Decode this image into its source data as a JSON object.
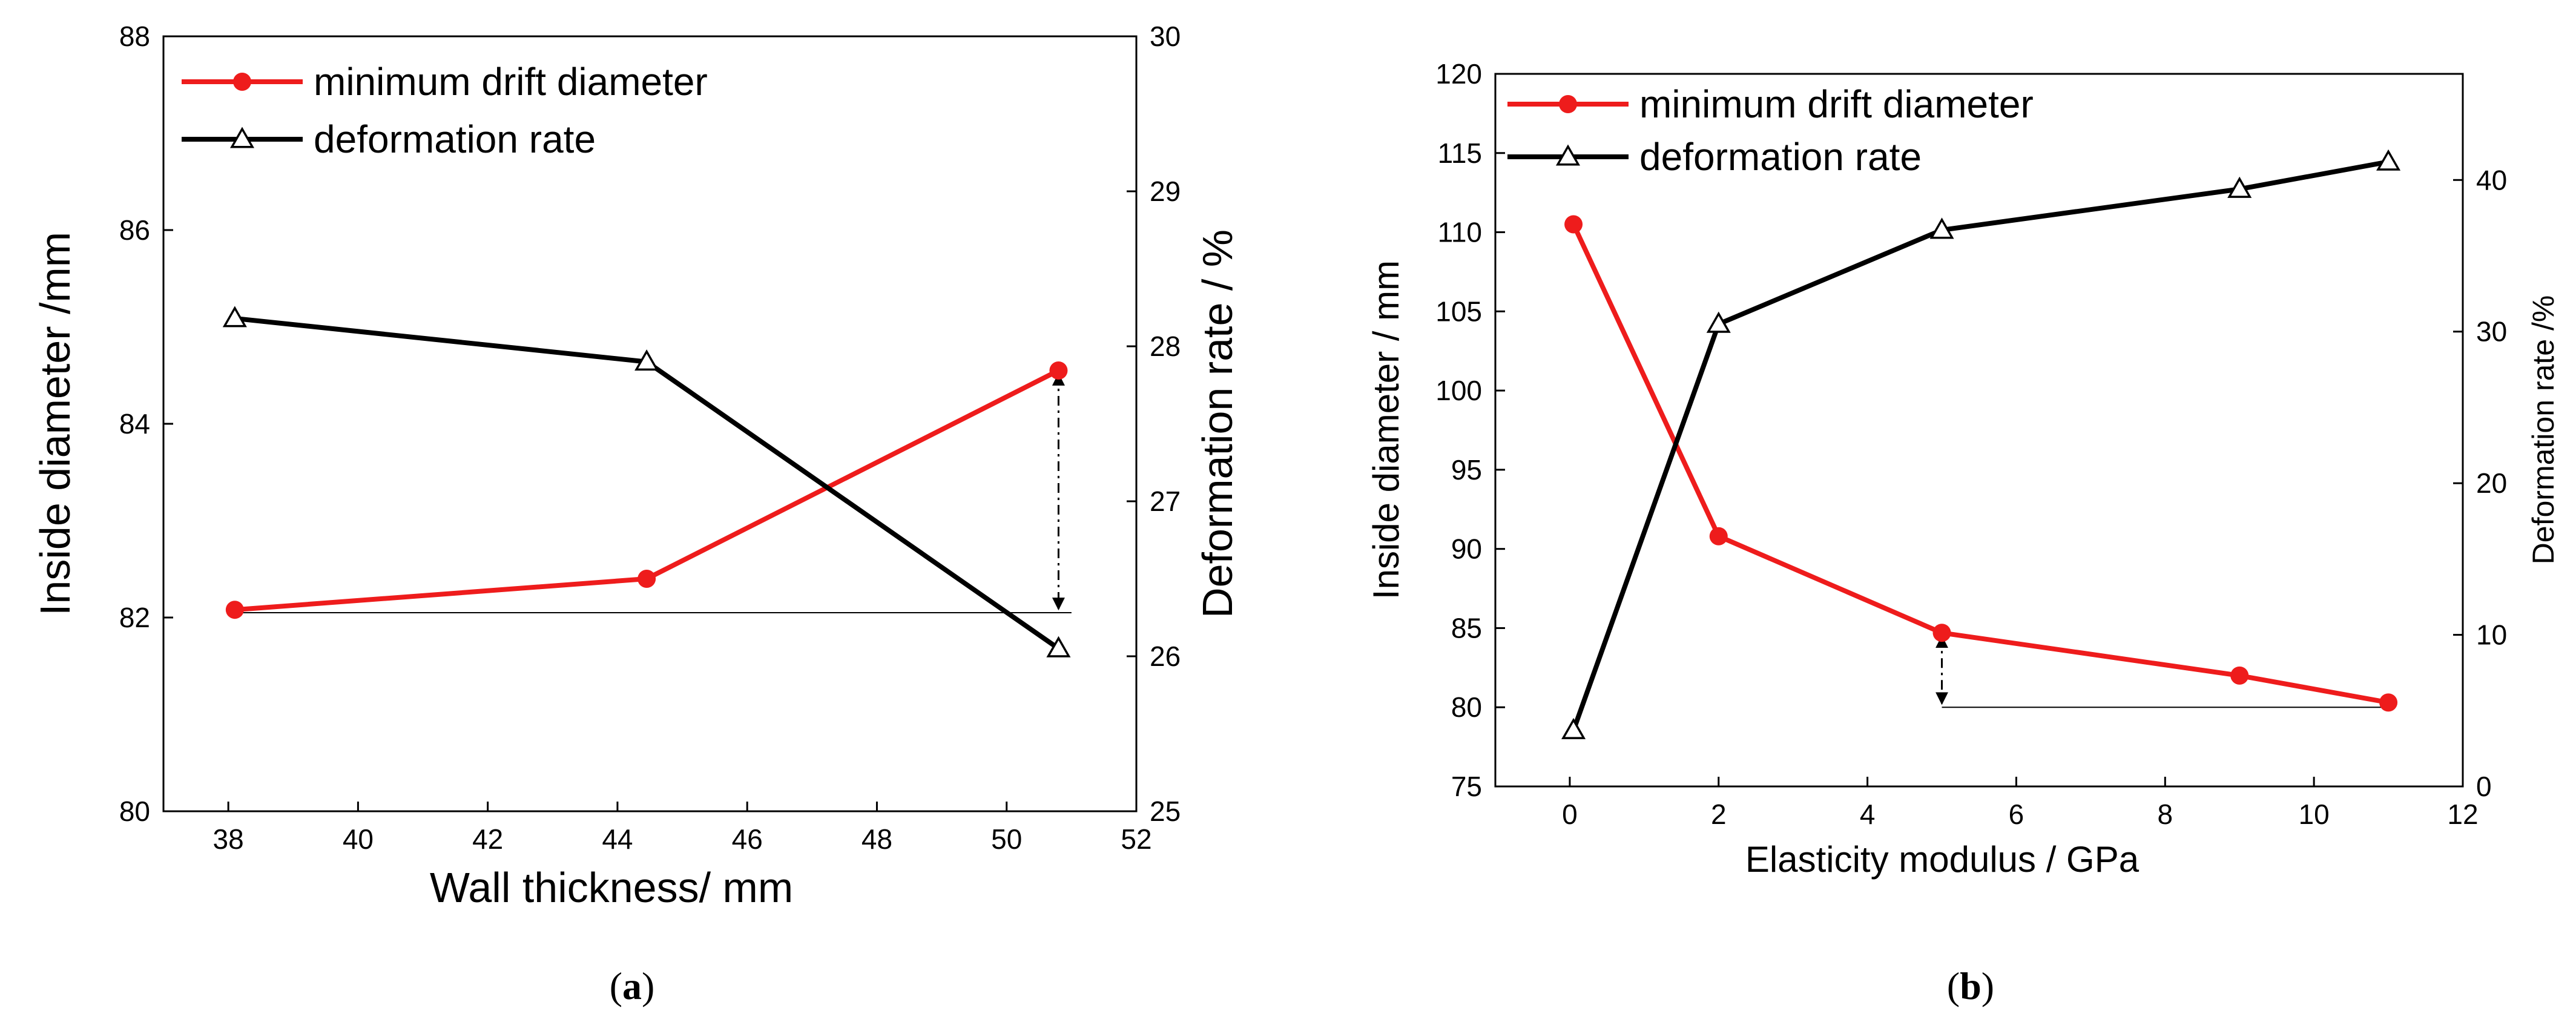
{
  "colors": {
    "red": "#ee1c1c",
    "black": "#000000"
  },
  "chart_data": [
    {
      "type": "line",
      "panel": "a",
      "caption": {
        "open": "(",
        "letter": "a",
        "close": ")"
      },
      "xlabel": "Wall thickness/ mm",
      "ylabel": "Inside diameter /mm",
      "y2label": "Deformation rate / %",
      "xlim": [
        37,
        52
      ],
      "ylim": [
        80,
        88
      ],
      "y2lim": [
        25,
        30
      ],
      "xticks": [
        38,
        40,
        42,
        44,
        46,
        48,
        50,
        52
      ],
      "yticks": [
        80,
        82,
        84,
        86,
        88
      ],
      "y2ticks": [
        25,
        26,
        27,
        28,
        29,
        30
      ],
      "legend": [
        "minimum drift diameter",
        "deformation rate"
      ],
      "series": [
        {
          "name": "minimum drift diameter",
          "axis": "left",
          "marker": "circle",
          "x": [
            38.1,
            44.45,
            50.8
          ],
          "values": [
            82.08,
            82.4,
            84.55
          ]
        },
        {
          "name": "deformation rate",
          "axis": "right",
          "marker": "triangle",
          "x": [
            38.1,
            44.45,
            50.8
          ],
          "values": [
            28.18,
            27.9,
            26.05
          ]
        }
      ],
      "reference_line": {
        "value": 82.05,
        "axis": "left",
        "x_from": 38.1,
        "x_to": 51.0
      },
      "arrow": {
        "x": 50.8,
        "from": 84.55,
        "to": 82.05,
        "axis": "left"
      }
    },
    {
      "type": "line",
      "panel": "b",
      "caption": {
        "open": "(",
        "letter": "b",
        "close": ")"
      },
      "xlabel": "Elasticity modulus / GPa",
      "ylabel": "Inside diameter / mm",
      "y2label": "Deformation rate /%",
      "xlim": [
        -1,
        12
      ],
      "ylim": [
        75,
        120
      ],
      "y2lim": [
        0,
        47
      ],
      "xticks": [
        0,
        2,
        4,
        6,
        8,
        10,
        12
      ],
      "yticks": [
        75,
        80,
        85,
        90,
        95,
        100,
        105,
        110,
        115,
        120
      ],
      "y2ticks": [
        0,
        10,
        20,
        30,
        40
      ],
      "legend": [
        "minimum drift diameter",
        "deformation rate"
      ],
      "series": [
        {
          "name": "minimum drift diameter",
          "axis": "left",
          "marker": "circle",
          "x": [
            0.05,
            2,
            5,
            9,
            11
          ],
          "values": [
            110.5,
            90.8,
            84.7,
            82.0,
            80.3
          ]
        },
        {
          "name": "deformation rate",
          "axis": "right",
          "marker": "triangle",
          "x": [
            0.05,
            2,
            5,
            9,
            11
          ],
          "values": [
            3.7,
            30.5,
            36.7,
            39.4,
            41.2
          ]
        }
      ],
      "reference_line": {
        "value": 80.0,
        "axis": "left",
        "x_from": 5,
        "x_to": 11
      },
      "arrow": {
        "x": 5,
        "from": 84.7,
        "to": 80.0,
        "axis": "left"
      }
    }
  ]
}
